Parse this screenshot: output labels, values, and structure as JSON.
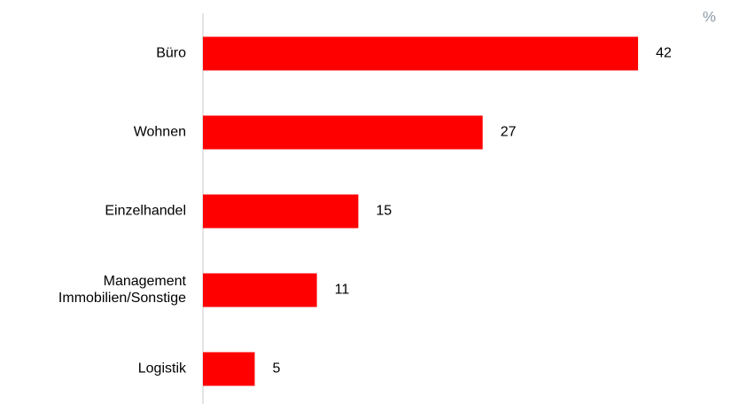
{
  "chart_data": {
    "type": "bar",
    "orientation": "horizontal",
    "unit": "%",
    "categories": [
      "Büro",
      "Wohnen",
      "Einzelhandel",
      "Management Immobilien/Sonstige",
      "Logistik"
    ],
    "values": [
      42,
      27,
      15,
      11,
      5
    ],
    "color": "#ff0000",
    "xlim": [
      0,
      51.4
    ]
  }
}
